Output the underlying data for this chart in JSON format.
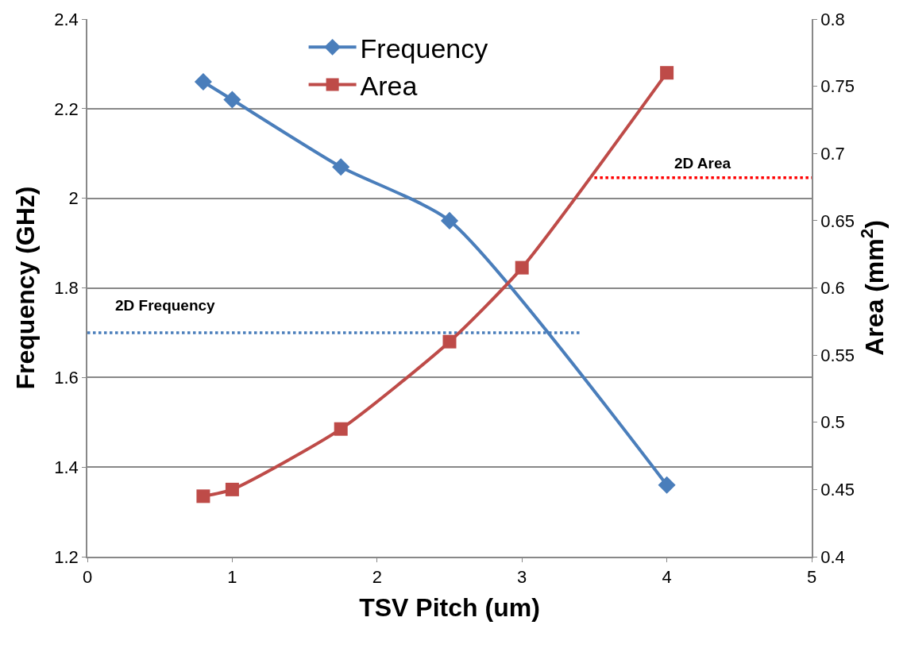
{
  "chart_data": {
    "type": "line",
    "xlabel": "TSV Pitch (um)",
    "ylabel": "Frequency (GHz)",
    "y2label": "Area (mm$^{2}$)",
    "xlim": [
      0,
      5
    ],
    "xticks": [
      0,
      1,
      2,
      3,
      4,
      5
    ],
    "ylim": [
      1.2,
      2.4
    ],
    "yticks": [
      1.2,
      1.4,
      1.6,
      1.8,
      2,
      2.2,
      2.4
    ],
    "y2lim": [
      0.4,
      0.8
    ],
    "y2ticks": [
      0.4,
      0.45,
      0.5,
      0.55,
      0.6,
      0.65,
      0.7,
      0.75,
      0.8
    ],
    "grid": "y",
    "legend": "top",
    "line_style": "solid",
    "series": [
      {
        "name": "Frequency",
        "color": "#4a7ebb",
        "marker": "diamond",
        "x": [
          0.8,
          1,
          1.75,
          2.5,
          3,
          4
        ],
        "values": [
          2.26,
          2.22,
          2.07,
          1.95,
          null,
          1.36
        ]
      },
      {
        "name": "Area",
        "color": "#be4b48",
        "marker": "square",
        "axis": "y2",
        "x": [
          0.8,
          1,
          1.75,
          2.5,
          3,
          4
        ],
        "values": [
          0.445,
          0.45,
          0.495,
          0.56,
          0.615,
          0.76
        ]
      },
      {
        "name": "2D Frequency",
        "color": "#4a7ebb",
        "marker": "none",
        "line_style": "dotted",
        "x": [
          0,
          3.4
        ],
        "values": [
          1.7,
          1.7
        ]
      },
      {
        "name": "2D Area",
        "color": "#ff0000",
        "marker": "none",
        "line_style": "dotted",
        "axis": "y2",
        "x": [
          3.5,
          5
        ],
        "values": [
          0.682,
          0.682
        ]
      }
    ]
  }
}
